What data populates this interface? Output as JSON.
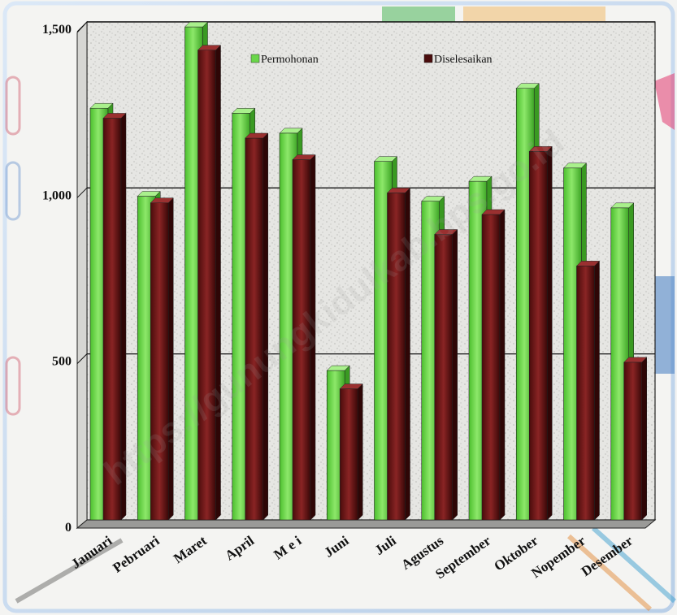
{
  "chart_data": {
    "type": "bar",
    "categories": [
      "Januari",
      "Pebruari",
      "Maret",
      "April",
      "M e i",
      "Juni",
      "Juli",
      "Agustus",
      "September",
      "Oktober",
      "Nopember",
      "Desember"
    ],
    "series": [
      {
        "name": "Permohonan",
        "values": [
          1240,
          975,
          1485,
          1225,
          1165,
          450,
          1080,
          960,
          1020,
          1300,
          1060,
          940
        ],
        "color": "#6ad64a"
      },
      {
        "name": "Diselesaikan",
        "values": [
          1210,
          955,
          1415,
          1150,
          1085,
          395,
          985,
          860,
          920,
          1110,
          765,
          475
        ],
        "color": "#6b1515"
      }
    ],
    "yticks": [
      {
        "value": 0,
        "label": "0"
      },
      {
        "value": 500,
        "label": "500"
      },
      {
        "value": 1000,
        "label": "1,000"
      },
      {
        "value": 1500,
        "label": "1,500"
      }
    ],
    "ylim": [
      0,
      1500
    ],
    "grid": true,
    "legend_position": "top",
    "title": "",
    "xlabel": "",
    "ylabel": ""
  },
  "watermark": "https://gunungkidulkab.bps.go.id"
}
